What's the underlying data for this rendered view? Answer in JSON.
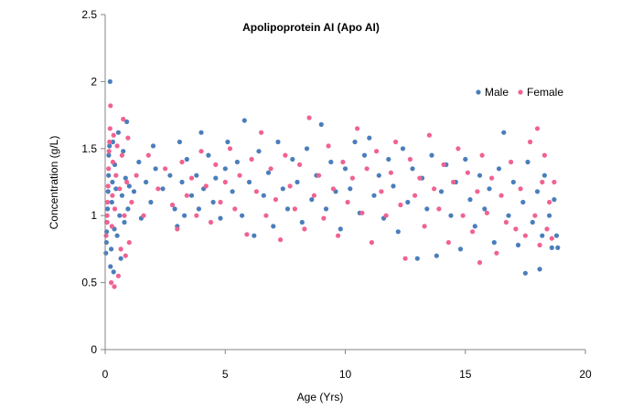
{
  "chart_data": {
    "type": "scatter",
    "title": "Apolipoprotein AI (Apo AI)",
    "xlabel": "Age (Yrs)",
    "ylabel": "Concentration (g/L)",
    "xlim": [
      0,
      20
    ],
    "ylim": [
      0,
      2.5
    ],
    "xticks": [
      "0",
      "5",
      "10",
      "15",
      "20"
    ],
    "yticks": [
      "0",
      "0.5",
      "1",
      "1.5",
      "2",
      "2.5"
    ],
    "grid": false,
    "legend_position": "top-right",
    "series": [
      {
        "name": "Male",
        "color": "#4A7EBB",
        "points": [
          [
            0.03,
            0.72
          ],
          [
            0.05,
            0.8
          ],
          [
            0.06,
            0.88
          ],
          [
            0.08,
            0.95
          ],
          [
            0.1,
            1.05
          ],
          [
            0.12,
            1.18
          ],
          [
            0.14,
            1.3
          ],
          [
            0.15,
            1.45
          ],
          [
            0.18,
            1.52
          ],
          [
            0.2,
            2.0
          ],
          [
            0.22,
            0.62
          ],
          [
            0.25,
            0.75
          ],
          [
            0.28,
            1.1
          ],
          [
            0.3,
            1.25
          ],
          [
            0.32,
            1.55
          ],
          [
            0.35,
            0.58
          ],
          [
            0.38,
            0.9
          ],
          [
            0.4,
            1.38
          ],
          [
            0.45,
            1.2
          ],
          [
            0.5,
            0.85
          ],
          [
            0.55,
            1.62
          ],
          [
            0.6,
            1.0
          ],
          [
            0.65,
            0.68
          ],
          [
            0.7,
            1.15
          ],
          [
            0.75,
            1.48
          ],
          [
            0.8,
            0.95
          ],
          [
            0.85,
            1.28
          ],
          [
            0.9,
            1.7
          ],
          [
            0.95,
            1.05
          ],
          [
            1.0,
            1.22
          ],
          [
            1.2,
            1.18
          ],
          [
            1.4,
            1.4
          ],
          [
            1.5,
            0.98
          ],
          [
            1.7,
            1.25
          ],
          [
            1.9,
            1.1
          ],
          [
            2.0,
            1.52
          ],
          [
            2.1,
            1.35
          ],
          [
            2.4,
            1.2
          ],
          [
            2.7,
            1.3
          ],
          [
            2.9,
            1.05
          ],
          [
            3.0,
            0.92
          ],
          [
            3.1,
            1.55
          ],
          [
            3.2,
            1.25
          ],
          [
            3.3,
            1.0
          ],
          [
            3.4,
            1.42
          ],
          [
            3.6,
            1.15
          ],
          [
            3.8,
            1.3
          ],
          [
            3.9,
            1.05
          ],
          [
            4.0,
            1.62
          ],
          [
            4.1,
            1.2
          ],
          [
            4.3,
            1.45
          ],
          [
            4.5,
            1.1
          ],
          [
            4.6,
            1.28
          ],
          [
            4.8,
            0.98
          ],
          [
            5.0,
            1.35
          ],
          [
            5.1,
            1.55
          ],
          [
            5.3,
            1.18
          ],
          [
            5.5,
            1.4
          ],
          [
            5.7,
            1.0
          ],
          [
            5.8,
            1.71
          ],
          [
            6.0,
            1.25
          ],
          [
            6.2,
            0.85
          ],
          [
            6.4,
            1.48
          ],
          [
            6.6,
            1.15
          ],
          [
            6.8,
            1.32
          ],
          [
            7.0,
            0.92
          ],
          [
            7.2,
            1.55
          ],
          [
            7.4,
            1.2
          ],
          [
            7.6,
            1.05
          ],
          [
            7.8,
            1.42
          ],
          [
            8.0,
            1.25
          ],
          [
            8.2,
            0.95
          ],
          [
            8.4,
            1.5
          ],
          [
            8.6,
            1.12
          ],
          [
            8.8,
            1.3
          ],
          [
            9.0,
            1.68
          ],
          [
            9.2,
            1.05
          ],
          [
            9.4,
            1.4
          ],
          [
            9.6,
            1.18
          ],
          [
            9.8,
            0.9
          ],
          [
            10.0,
            1.35
          ],
          [
            10.2,
            1.2
          ],
          [
            10.4,
            1.55
          ],
          [
            10.6,
            1.02
          ],
          [
            10.8,
            1.45
          ],
          [
            11.0,
            1.58
          ],
          [
            11.2,
            1.15
          ],
          [
            11.4,
            1.3
          ],
          [
            11.6,
            0.98
          ],
          [
            11.8,
            1.42
          ],
          [
            12.0,
            1.22
          ],
          [
            12.2,
            0.88
          ],
          [
            12.4,
            1.5
          ],
          [
            12.6,
            1.1
          ],
          [
            12.8,
            1.35
          ],
          [
            13.0,
            0.68
          ],
          [
            13.2,
            1.28
          ],
          [
            13.4,
            1.05
          ],
          [
            13.6,
            1.45
          ],
          [
            13.8,
            0.7
          ],
          [
            14.0,
            1.18
          ],
          [
            14.2,
            1.38
          ],
          [
            14.4,
            1.0
          ],
          [
            14.6,
            1.25
          ],
          [
            14.8,
            0.75
          ],
          [
            15.0,
            1.42
          ],
          [
            15.2,
            1.12
          ],
          [
            15.4,
            0.92
          ],
          [
            15.6,
            1.3
          ],
          [
            15.8,
            1.05
          ],
          [
            16.0,
            1.2
          ],
          [
            16.2,
            0.8
          ],
          [
            16.4,
            1.35
          ],
          [
            16.6,
            1.62
          ],
          [
            16.8,
            1.0
          ],
          [
            17.0,
            1.25
          ],
          [
            17.2,
            0.78
          ],
          [
            17.4,
            1.1
          ],
          [
            17.5,
            0.57
          ],
          [
            17.6,
            1.4
          ],
          [
            17.8,
            0.95
          ],
          [
            18.0,
            1.18
          ],
          [
            18.1,
            0.6
          ],
          [
            18.2,
            0.85
          ],
          [
            18.3,
            1.3
          ],
          [
            18.5,
            1.0
          ],
          [
            18.6,
            0.76
          ],
          [
            18.7,
            1.12
          ],
          [
            18.8,
            0.85
          ],
          [
            18.85,
            0.76
          ]
        ]
      },
      {
        "name": "Female",
        "color": "#F06292",
        "points": [
          [
            0.04,
            0.85
          ],
          [
            0.06,
            0.95
          ],
          [
            0.08,
            1.0
          ],
          [
            0.1,
            1.1
          ],
          [
            0.12,
            1.22
          ],
          [
            0.14,
            1.35
          ],
          [
            0.16,
            1.48
          ],
          [
            0.18,
            1.55
          ],
          [
            0.2,
            1.65
          ],
          [
            0.22,
            1.82
          ],
          [
            0.25,
            0.5
          ],
          [
            0.28,
            0.92
          ],
          [
            0.3,
            1.15
          ],
          [
            0.32,
            1.4
          ],
          [
            0.35,
            1.6
          ],
          [
            0.38,
            0.47
          ],
          [
            0.4,
            1.05
          ],
          [
            0.45,
            1.3
          ],
          [
            0.5,
            1.52
          ],
          [
            0.55,
            0.55
          ],
          [
            0.6,
            1.2
          ],
          [
            0.65,
            0.75
          ],
          [
            0.7,
            1.45
          ],
          [
            0.75,
            1.72
          ],
          [
            0.8,
            1.0
          ],
          [
            0.85,
            0.7
          ],
          [
            0.9,
            1.25
          ],
          [
            0.95,
            1.58
          ],
          [
            1.0,
            0.8
          ],
          [
            1.1,
            1.1
          ],
          [
            1.3,
            1.3
          ],
          [
            1.6,
            1.0
          ],
          [
            1.8,
            1.45
          ],
          [
            2.2,
            1.2
          ],
          [
            2.5,
            1.35
          ],
          [
            2.8,
            1.08
          ],
          [
            3.0,
            0.9
          ],
          [
            3.2,
            1.4
          ],
          [
            3.4,
            1.15
          ],
          [
            3.6,
            1.28
          ],
          [
            3.8,
            1.0
          ],
          [
            4.0,
            1.48
          ],
          [
            4.2,
            1.22
          ],
          [
            4.4,
            0.95
          ],
          [
            4.6,
            1.38
          ],
          [
            4.8,
            1.1
          ],
          [
            5.0,
            1.25
          ],
          [
            5.2,
            1.5
          ],
          [
            5.4,
            1.05
          ],
          [
            5.6,
            1.3
          ],
          [
            5.9,
            0.86
          ],
          [
            6.1,
            1.42
          ],
          [
            6.3,
            1.18
          ],
          [
            6.5,
            1.62
          ],
          [
            6.7,
            1.0
          ],
          [
            6.9,
            1.35
          ],
          [
            7.1,
            1.12
          ],
          [
            7.3,
            0.82
          ],
          [
            7.5,
            1.45
          ],
          [
            7.7,
            1.22
          ],
          [
            7.9,
            1.05
          ],
          [
            8.1,
            1.38
          ],
          [
            8.3,
            0.9
          ],
          [
            8.5,
            1.73
          ],
          [
            8.7,
            1.15
          ],
          [
            8.9,
            1.3
          ],
          [
            9.1,
            0.98
          ],
          [
            9.3,
            1.52
          ],
          [
            9.5,
            1.2
          ],
          [
            9.7,
            0.85
          ],
          [
            9.9,
            1.4
          ],
          [
            10.1,
            1.1
          ],
          [
            10.3,
            1.28
          ],
          [
            10.5,
            1.65
          ],
          [
            10.7,
            1.02
          ],
          [
            10.9,
            1.35
          ],
          [
            11.1,
            0.8
          ],
          [
            11.3,
            1.48
          ],
          [
            11.5,
            1.18
          ],
          [
            11.7,
            1.0
          ],
          [
            11.9,
            1.32
          ],
          [
            12.1,
            1.55
          ],
          [
            12.3,
            1.08
          ],
          [
            12.5,
            0.68
          ],
          [
            12.7,
            1.42
          ],
          [
            12.9,
            1.15
          ],
          [
            13.1,
            1.28
          ],
          [
            13.3,
            0.92
          ],
          [
            13.5,
            1.6
          ],
          [
            13.7,
            1.2
          ],
          [
            13.9,
            1.05
          ],
          [
            14.1,
            1.38
          ],
          [
            14.3,
            0.8
          ],
          [
            14.5,
            1.25
          ],
          [
            14.7,
            1.5
          ],
          [
            14.9,
            1.0
          ],
          [
            15.1,
            1.32
          ],
          [
            15.3,
            0.88
          ],
          [
            15.5,
            1.18
          ],
          [
            15.6,
            0.65
          ],
          [
            15.7,
            1.45
          ],
          [
            15.9,
            1.02
          ],
          [
            16.1,
            1.28
          ],
          [
            16.3,
            0.72
          ],
          [
            16.5,
            1.15
          ],
          [
            16.7,
            0.95
          ],
          [
            16.9,
            1.4
          ],
          [
            17.1,
            0.9
          ],
          [
            17.3,
            1.2
          ],
          [
            17.5,
            0.85
          ],
          [
            17.7,
            1.55
          ],
          [
            17.9,
            1.0
          ],
          [
            18.0,
            1.65
          ],
          [
            18.1,
            0.78
          ],
          [
            18.2,
            1.25
          ],
          [
            18.3,
            1.45
          ],
          [
            18.4,
            0.9
          ],
          [
            18.5,
            1.1
          ],
          [
            18.6,
            0.83
          ],
          [
            18.7,
            1.25
          ]
        ]
      }
    ]
  }
}
